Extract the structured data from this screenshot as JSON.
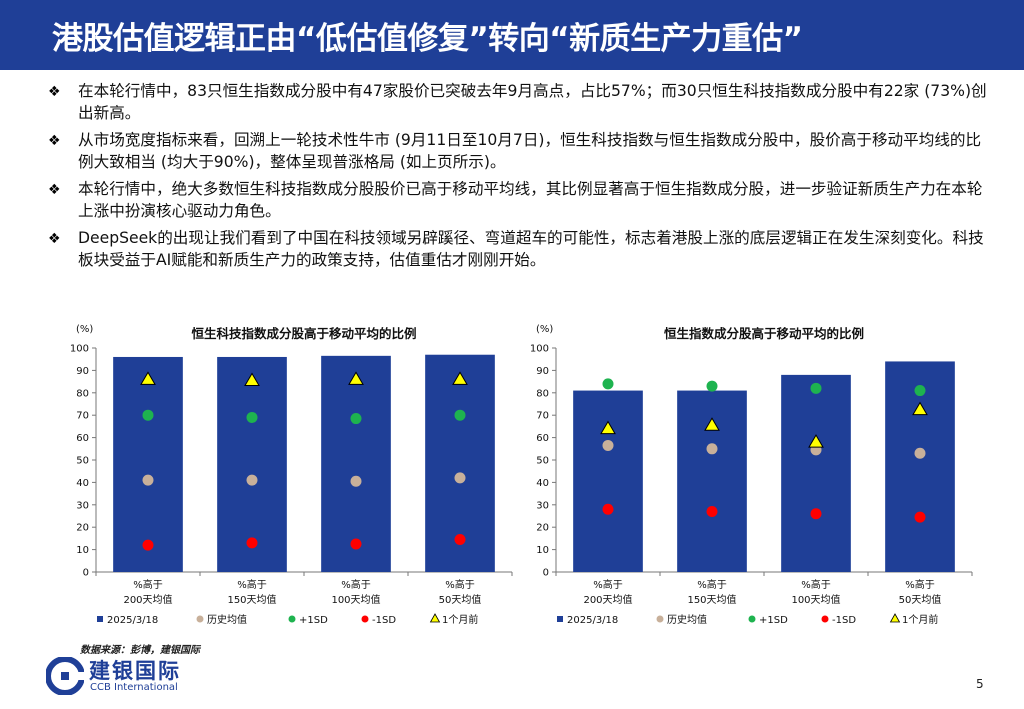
{
  "header": {
    "title": "港股估值逻辑正由“低估值修复”转向“新质生产力重估”"
  },
  "bullets": [
    "在本轮行情中，83只恒生指数成分股中有47家股价已突破去年9月高点，占比57%；而30只恒生科技指数成分股中有22家 (73%)创出新高。",
    "从市场宽度指标来看，回溯上一轮技术性牛市 (9月11日至10月7日)，恒生科技指数与恒生指数成分股中，股价高于移动平均线的比例大致相当 (均大于90%)，整体呈现普涨格局 (如上页所示)。",
    "本轮行情中，绝大多数恒生科技指数成分股股价已高于移动平均线，其比例显著高于恒生指数成分股，进一步验证新质生产力在本轮上涨中扮演核心驱动力角色。",
    "DeepSeek的出现让我们看到了中国在科技领域另辟蹊径、弯道超车的可能性，标志着港股上涨的底层逻辑正在发生深刻变化。科技板块受益于AI赋能和新质生产力的政策支持，估值重估才刚刚开始。"
  ],
  "bullet_icon": "diamond-bullet-icon",
  "chart_data": [
    {
      "type": "bar",
      "title": "恒生科技指数成分股高于移动平均的比例",
      "yunit": "(%)",
      "ylim": [
        0,
        100
      ],
      "yticks": [
        "0",
        "10",
        "20",
        "30",
        "40",
        "50",
        "60",
        "70",
        "80",
        "90",
        "100"
      ],
      "categories": [
        [
          "%高于",
          "200天均值"
        ],
        [
          "%高于",
          "150天均值"
        ],
        [
          "%高于",
          "100天均值"
        ],
        [
          "%高于",
          "50天均值"
        ]
      ],
      "series": [
        {
          "name": "2025/3/18",
          "kind": "bar",
          "color": "#1f3f97",
          "values": [
            96,
            96,
            96.5,
            97
          ]
        },
        {
          "name": "历史均值",
          "kind": "marker",
          "marker": "circle",
          "color": "#c8b09a",
          "values": [
            41,
            41,
            40.5,
            42
          ]
        },
        {
          "name": "+1SD",
          "kind": "marker",
          "marker": "circle",
          "color": "#1eb34f",
          "values": [
            70,
            69,
            68.5,
            70
          ]
        },
        {
          "name": "-1SD",
          "kind": "marker",
          "marker": "circle",
          "color": "#ff0000",
          "values": [
            12,
            13,
            12.5,
            14.5
          ]
        },
        {
          "name": "1个月前",
          "kind": "marker",
          "marker": "triangle",
          "color": "#ffff00",
          "values": [
            86,
            85.5,
            86,
            86
          ]
        }
      ],
      "legend_position": "bottom"
    },
    {
      "type": "bar",
      "title": "恒生指数成分股高于移动平均的比例",
      "yunit": "(%)",
      "ylim": [
        0,
        100
      ],
      "yticks": [
        "0",
        "10",
        "20",
        "30",
        "40",
        "50",
        "60",
        "70",
        "80",
        "90",
        "100"
      ],
      "categories": [
        [
          "%高于",
          "200天均值"
        ],
        [
          "%高于",
          "150天均值"
        ],
        [
          "%高于",
          "100天均值"
        ],
        [
          "%高于",
          "50天均值"
        ]
      ],
      "series": [
        {
          "name": "2025/3/18",
          "kind": "bar",
          "color": "#1f3f97",
          "values": [
            81,
            81,
            88,
            94
          ]
        },
        {
          "name": "历史均值",
          "kind": "marker",
          "marker": "circle",
          "color": "#c8b09a",
          "values": [
            56.5,
            55,
            54.5,
            53
          ]
        },
        {
          "name": "+1SD",
          "kind": "marker",
          "marker": "circle",
          "color": "#1eb34f",
          "values": [
            84,
            83,
            82,
            81
          ]
        },
        {
          "name": "-1SD",
          "kind": "marker",
          "marker": "circle",
          "color": "#ff0000",
          "values": [
            28,
            27,
            26,
            24.5
          ]
        },
        {
          "name": "1个月前",
          "kind": "marker",
          "marker": "triangle",
          "color": "#ffff00",
          "values": [
            64,
            65.5,
            58,
            72.5
          ]
        }
      ],
      "legend_position": "bottom"
    }
  ],
  "source_note": "数据来源：彭博，建银国际",
  "logo": {
    "cn": "建银国际",
    "en": "CCB International",
    "icon": "ccb-logo-icon"
  },
  "page_number": "5",
  "colors": {
    "header_bg": "#1f3f97",
    "bar": "#1f3f97"
  }
}
